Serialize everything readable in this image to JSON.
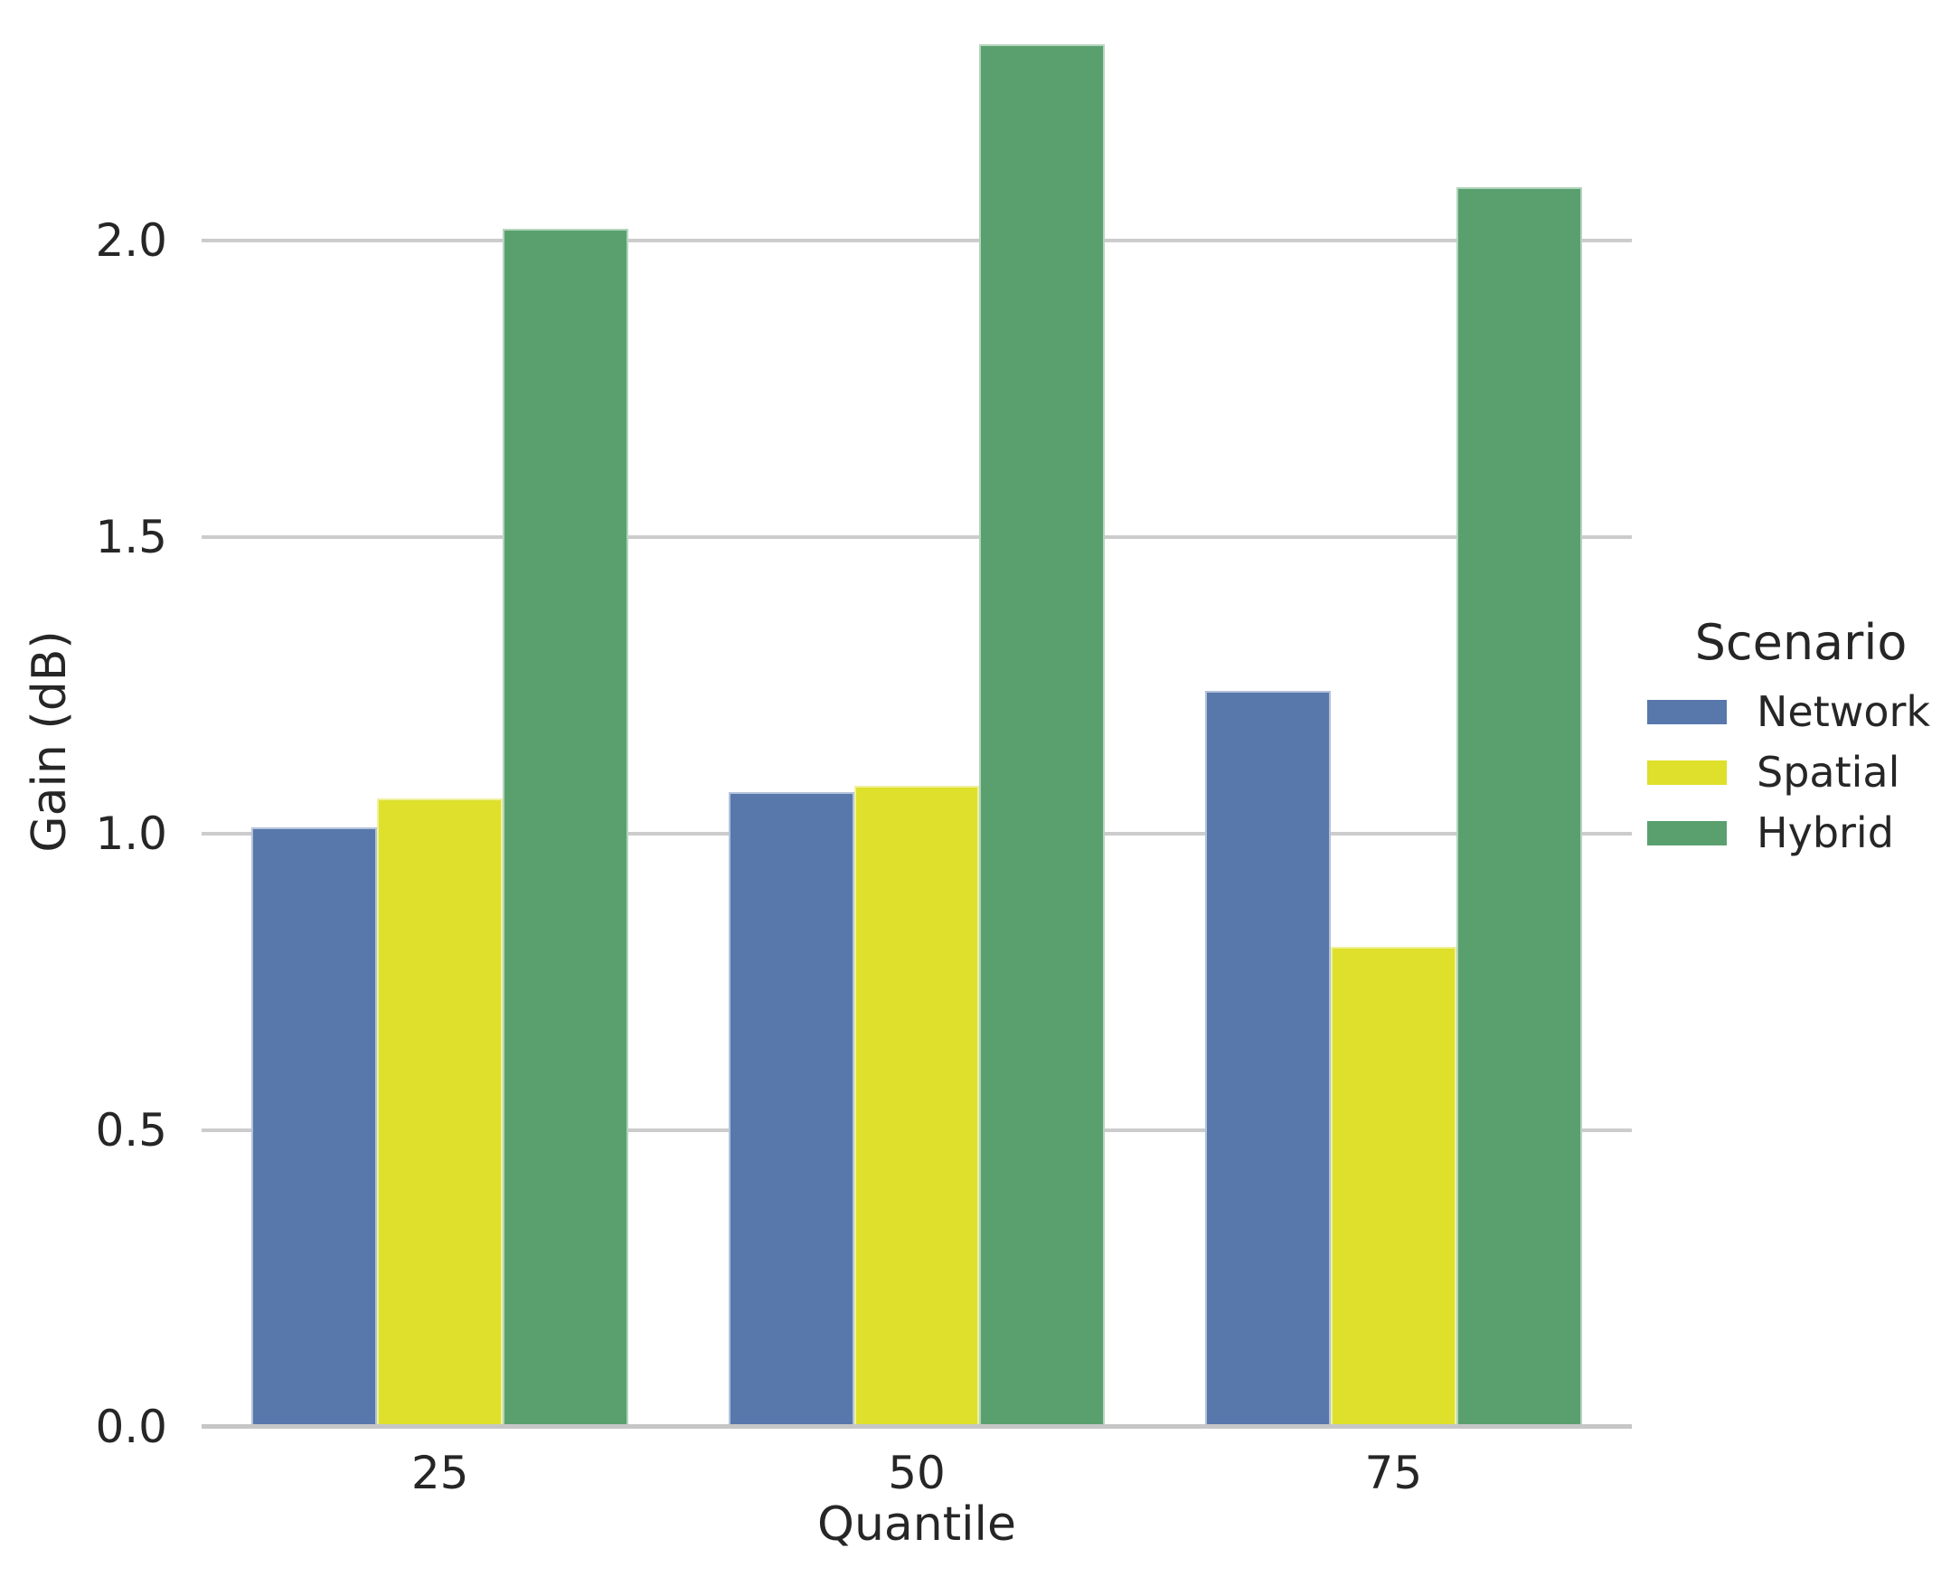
{
  "chart_data": {
    "type": "bar",
    "title": "",
    "xlabel": "Quantile",
    "ylabel": "Gain (dB)",
    "categories": [
      "25",
      "50",
      "75"
    ],
    "series": [
      {
        "name": "Network",
        "color": "#5878ab",
        "values": [
          1.01,
          1.07,
          1.24
        ]
      },
      {
        "name": "Spatial",
        "color": "#dee02b",
        "values": [
          1.06,
          1.08,
          0.81
        ]
      },
      {
        "name": "Hybrid",
        "color": "#5aa06e",
        "values": [
          2.02,
          2.33,
          2.09
        ]
      }
    ],
    "legend": {
      "title": "Scenario",
      "position": "right-outside"
    },
    "yticks": [
      0.0,
      0.5,
      1.0,
      1.5,
      2.0
    ],
    "ytick_labels": [
      "0.0",
      "0.5",
      "1.0",
      "1.5",
      "2.0"
    ],
    "ylim": [
      0,
      2.405
    ],
    "grid": "horizontal",
    "colors": {
      "gridline": "#cccccc",
      "axis_line": "#c6c6c6",
      "text": "#262626",
      "background": "#ffffff"
    }
  }
}
